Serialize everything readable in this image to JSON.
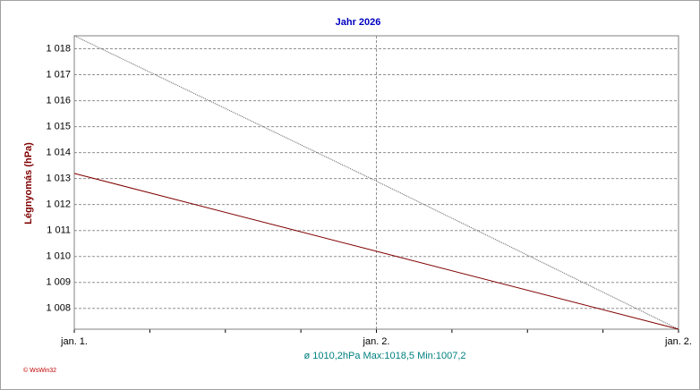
{
  "chart_data": {
    "type": "line",
    "title": "Jahr 2026",
    "y_label": "Légnyomás (hPa)",
    "categories": [
      "jan. 1.",
      "jan. 2.",
      "jan. 2."
    ],
    "series": [
      {
        "color": "#606060",
        "style": "dotted",
        "values": [
          1018.5,
          1012.9,
          1007.2
        ]
      },
      {
        "color": "#800000",
        "style": "solid",
        "values": [
          1013.2,
          1010.2,
          1007.2
        ]
      }
    ],
    "ylim": [
      1007.2,
      1018.5
    ],
    "yticks": [
      {
        "value": 1008,
        "label": "1 008"
      },
      {
        "value": 1009,
        "label": "1 009"
      },
      {
        "value": 1010,
        "label": "1 010"
      },
      {
        "value": 1011,
        "label": "1 011"
      },
      {
        "value": 1012,
        "label": "1 012"
      },
      {
        "value": 1013,
        "label": "1 013"
      },
      {
        "value": 1014,
        "label": "1 014"
      },
      {
        "value": 1015,
        "label": "1 015"
      },
      {
        "value": 1016,
        "label": "1 016"
      },
      {
        "value": 1017,
        "label": "1 017"
      },
      {
        "value": 1018,
        "label": "1 018"
      }
    ],
    "grid": true,
    "footer": "ø 1010,2hPa  Max:1018,5  Min:1007,2",
    "credit": "© WsWin32"
  }
}
